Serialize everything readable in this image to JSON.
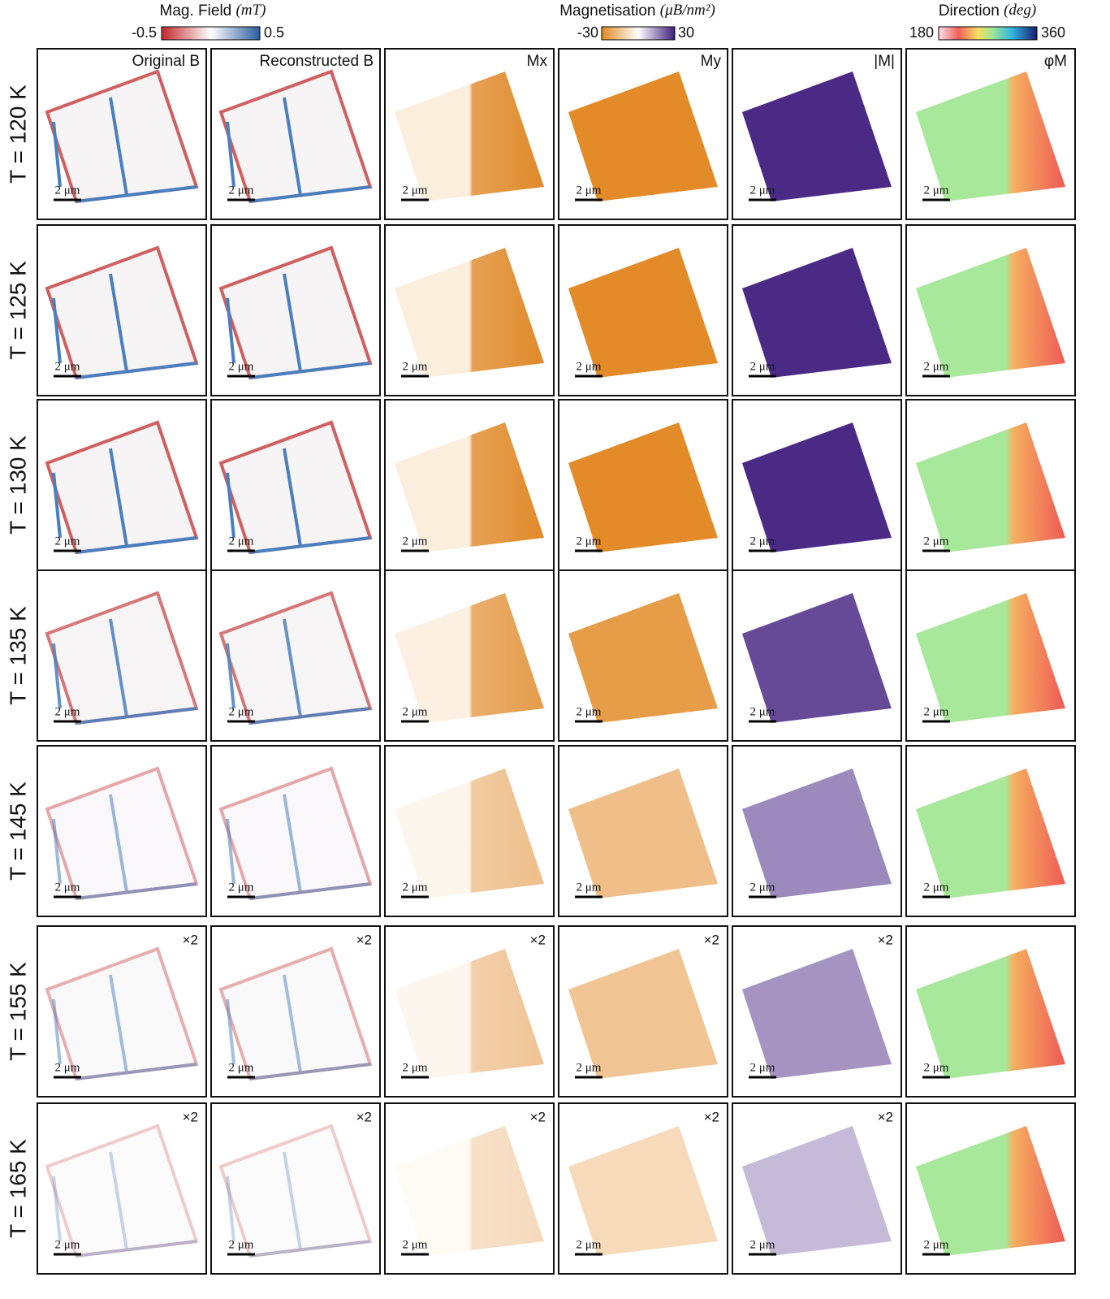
{
  "colorbars": [
    {
      "title": "Mag. Field",
      "unit": "(mT)",
      "min": -0.5,
      "max": 0.5
    },
    {
      "title": "Magnetisation",
      "unit": "(μB/nm²)",
      "min": -30,
      "max": 30
    },
    {
      "title": "Direction",
      "unit": "(deg)",
      "min": 180,
      "max": 360
    }
  ],
  "columns": [
    "Original B",
    "Reconstructed B",
    "Mx",
    "My",
    "|M|",
    "φM"
  ],
  "scale_bar": "2 μm",
  "rows": [
    {
      "label": "T = 120 K"
    },
    {
      "label": "T = 125 K"
    },
    {
      "label": "T = 130 K"
    },
    {
      "label": "T = 135 K"
    },
    {
      "label": "T = 145 K"
    },
    {
      "label": "T = 155 K",
      "factor": "×2"
    },
    {
      "label": "T = 165 K",
      "factor": "×2"
    }
  ]
}
